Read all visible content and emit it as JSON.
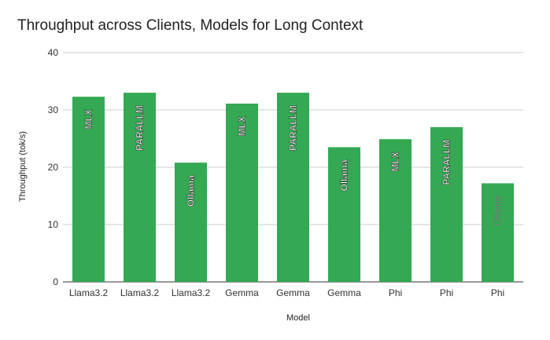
{
  "chart_data": {
    "type": "bar",
    "title": "Throughput across Clients, Models for Long Context",
    "xlabel": "Model",
    "ylabel": "Throughput (tok/s)",
    "ylim": [
      0,
      40
    ],
    "yticks": [
      0,
      10,
      20,
      30,
      40
    ],
    "grid": true,
    "bar_color": "#34a853",
    "categories": [
      "Llama3.2",
      "Llama3.2",
      "Llama3.2",
      "Gemma",
      "Gemma",
      "Gemma",
      "Phi",
      "Phi",
      "Phi"
    ],
    "values": [
      32.3,
      33.0,
      20.8,
      31.1,
      33.0,
      23.5,
      24.9,
      27.0,
      17.2
    ],
    "data_labels": [
      "MLX",
      "PARALLM",
      "Ollama",
      "MLX",
      "PARALLM",
      "Ollama",
      "MLX",
      "PARALLM",
      "Ollama"
    ]
  }
}
